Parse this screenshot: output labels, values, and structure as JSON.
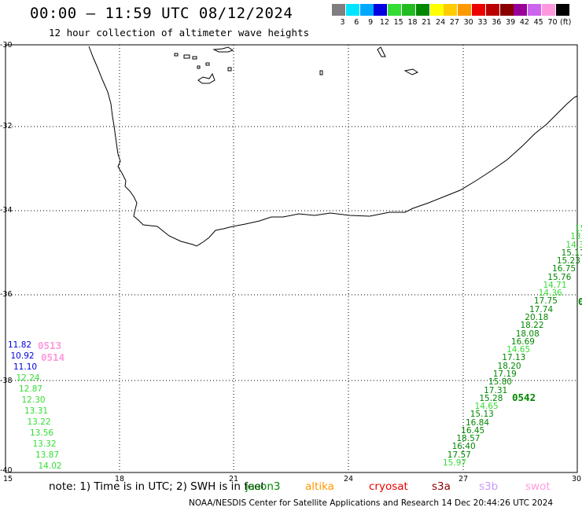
{
  "title": "00:00 – 11:59 UTC 08/12/2024",
  "subtitle": "12 hour collection of altimeter wave heights",
  "colorbar": {
    "unit": "(ft)",
    "entries": [
      {
        "label": "3",
        "color": "#7f7f7f"
      },
      {
        "label": "6",
        "color": "#00e5ff"
      },
      {
        "label": "9",
        "color": "#00a8ff"
      },
      {
        "label": "12",
        "color": "#0000e0"
      },
      {
        "label": "15",
        "color": "#33dd33"
      },
      {
        "label": "18",
        "color": "#22bb22"
      },
      {
        "label": "21",
        "color": "#008800"
      },
      {
        "label": "24",
        "color": "#ffff00"
      },
      {
        "label": "27",
        "color": "#ffcc00"
      },
      {
        "label": "30",
        "color": "#ff9900"
      },
      {
        "label": "33",
        "color": "#ee0000"
      },
      {
        "label": "36",
        "color": "#bb0000"
      },
      {
        "label": "39",
        "color": "#880000"
      },
      {
        "label": "42",
        "color": "#990099"
      },
      {
        "label": "45",
        "color": "#cc66ee"
      },
      {
        "label": "70",
        "color": "#ff99dd"
      },
      {
        "label": "",
        "color": "#000000"
      }
    ]
  },
  "map": {
    "lat_labels": [
      "-30",
      "-32",
      "-34",
      "-36",
      "-38",
      "-40"
    ],
    "lon_labels": [
      "15",
      "18",
      "21",
      "24",
      "27",
      "30"
    ]
  },
  "tracks": {
    "west_labels": [
      {
        "text": "11.82",
        "color": "#0000e0"
      },
      {
        "text": "10.92",
        "color": "#0000e0"
      },
      {
        "text": "11.10",
        "color": "#0000e0"
      },
      {
        "text": "12.24",
        "color": "#33dd33"
      },
      {
        "text": "12.87",
        "color": "#33dd33"
      },
      {
        "text": "12.30",
        "color": "#33dd33"
      },
      {
        "text": "13.31",
        "color": "#33dd33"
      },
      {
        "text": "13.22",
        "color": "#33dd33"
      },
      {
        "text": "13.56",
        "color": "#33dd33"
      },
      {
        "text": "13.32",
        "color": "#33dd33"
      },
      {
        "text": "13.87",
        "color": "#33dd33"
      },
      {
        "text": "14.02",
        "color": "#33dd33"
      }
    ],
    "west_pass_labels": [
      "0513",
      "0514"
    ],
    "east_labels": [
      {
        "text": "15.97",
        "color": "#33dd33"
      },
      {
        "text": "17.57",
        "color": "#008800"
      },
      {
        "text": "16.40",
        "color": "#008800"
      },
      {
        "text": "18.57",
        "color": "#008800"
      },
      {
        "text": "16.45",
        "color": "#008800"
      },
      {
        "text": "16.84",
        "color": "#008800"
      },
      {
        "text": "15.13",
        "color": "#008800"
      },
      {
        "text": "14.65",
        "color": "#33dd33"
      },
      {
        "text": "15.28",
        "color": "#008800"
      },
      {
        "text": "17.31",
        "color": "#008800"
      },
      {
        "text": "15.80",
        "color": "#008800"
      },
      {
        "text": "17.19",
        "color": "#008800"
      },
      {
        "text": "18.20",
        "color": "#008800"
      },
      {
        "text": "17.13",
        "color": "#008800"
      },
      {
        "text": "14.65",
        "color": "#33dd33"
      },
      {
        "text": "16.69",
        "color": "#008800"
      },
      {
        "text": "18.08",
        "color": "#008800"
      },
      {
        "text": "18.22",
        "color": "#008800"
      },
      {
        "text": "20.18",
        "color": "#008800"
      },
      {
        "text": "17.74",
        "color": "#008800"
      },
      {
        "text": "17.75",
        "color": "#008800"
      },
      {
        "text": "14.36",
        "color": "#33dd33"
      },
      {
        "text": "14.71",
        "color": "#33dd33"
      },
      {
        "text": "15.76",
        "color": "#008800"
      },
      {
        "text": "16.75",
        "color": "#008800"
      },
      {
        "text": "15.23",
        "color": "#008800"
      },
      {
        "text": "15.11",
        "color": "#008800"
      },
      {
        "text": "14.3",
        "color": "#33dd33"
      },
      {
        "text": "13.",
        "color": "#33dd33"
      },
      {
        "text": "15",
        "color": "#33dd33"
      }
    ],
    "east_pass_labels": [
      "0542",
      "0"
    ]
  },
  "legend_note": "note: 1) Time is in UTC; 2) SWH is in feet",
  "satellites": [
    {
      "name": "jason3",
      "color": "#008800"
    },
    {
      "name": "altika",
      "color": "#ff9900"
    },
    {
      "name": "cryosat",
      "color": "#ee0000"
    },
    {
      "name": "s3a",
      "color": "#880000"
    },
    {
      "name": "s3b",
      "color": "#cc99ff"
    },
    {
      "name": "swot",
      "color": "#ff99dd"
    }
  ],
  "footer": "NOAA/NESDIS Center for Satellite Applications and Research   14 Dec 20:44:26 UTC 2024"
}
